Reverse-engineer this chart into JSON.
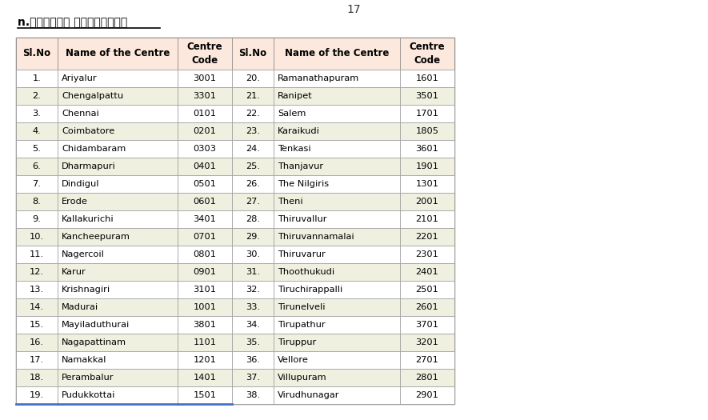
{
  "page_number": "17",
  "heading_tamil": "n.தேர்வு மையங்கள்",
  "header_bg": "#fce8dc",
  "alt_row_bg": "#f0f0e0",
  "white_row_bg": "#ffffff",
  "last_row_border_color": "#4472c4",
  "col_headers": [
    "Sl.No",
    "Name of the Centre",
    "Centre\nCode",
    "Sl.No",
    "Name of the Centre",
    "Centre\nCode"
  ],
  "left_data": [
    [
      "1.",
      "Ariyalur",
      "3001"
    ],
    [
      "2.",
      "Chengalpattu",
      "3301"
    ],
    [
      "3.",
      "Chennai",
      "0101"
    ],
    [
      "4.",
      "Coimbatore",
      "0201"
    ],
    [
      "5.",
      "Chidambaram",
      "0303"
    ],
    [
      "6.",
      "Dharmapuri",
      "0401"
    ],
    [
      "7.",
      "Dindigul",
      "0501"
    ],
    [
      "8.",
      "Erode",
      "0601"
    ],
    [
      "9.",
      "Kallakurichi",
      "3401"
    ],
    [
      "10.",
      "Kancheepuram",
      "0701"
    ],
    [
      "11.",
      "Nagercoil",
      "0801"
    ],
    [
      "12.",
      "Karur",
      "0901"
    ],
    [
      "13.",
      "Krishnagiri",
      "3101"
    ],
    [
      "14.",
      "Madurai",
      "1001"
    ],
    [
      "15.",
      "Mayiladuthurai",
      "3801"
    ],
    [
      "16.",
      "Nagapattinam",
      "1101"
    ],
    [
      "17.",
      "Namakkal",
      "1201"
    ],
    [
      "18.",
      "Perambalur",
      "1401"
    ],
    [
      "19.",
      "Pudukkottai",
      "1501"
    ]
  ],
  "right_data": [
    [
      "20.",
      "Ramanathapuram",
      "1601"
    ],
    [
      "21.",
      "Ranipet",
      "3501"
    ],
    [
      "22.",
      "Salem",
      "1701"
    ],
    [
      "23.",
      "Karaikudi",
      "1805"
    ],
    [
      "24.",
      "Tenkasi",
      "3601"
    ],
    [
      "25.",
      "Thanjavur",
      "1901"
    ],
    [
      "26.",
      "The Nilgiris",
      "1301"
    ],
    [
      "27.",
      "Theni",
      "2001"
    ],
    [
      "28.",
      "Thiruvallur",
      "2101"
    ],
    [
      "29.",
      "Thiruvannamalai",
      "2201"
    ],
    [
      "30.",
      "Thiruvarur",
      "2301"
    ],
    [
      "31.",
      "Thoothukudi",
      "2401"
    ],
    [
      "32.",
      "Tiruchirappalli",
      "2501"
    ],
    [
      "33.",
      "Tirunelveli",
      "2601"
    ],
    [
      "34.",
      "Tirupathur",
      "3701"
    ],
    [
      "35.",
      "Tiruppur",
      "3201"
    ],
    [
      "36.",
      "Vellore",
      "2701"
    ],
    [
      "37.",
      "Villupuram",
      "2801"
    ],
    [
      "38.",
      "Virudhunagar",
      "2901"
    ]
  ]
}
